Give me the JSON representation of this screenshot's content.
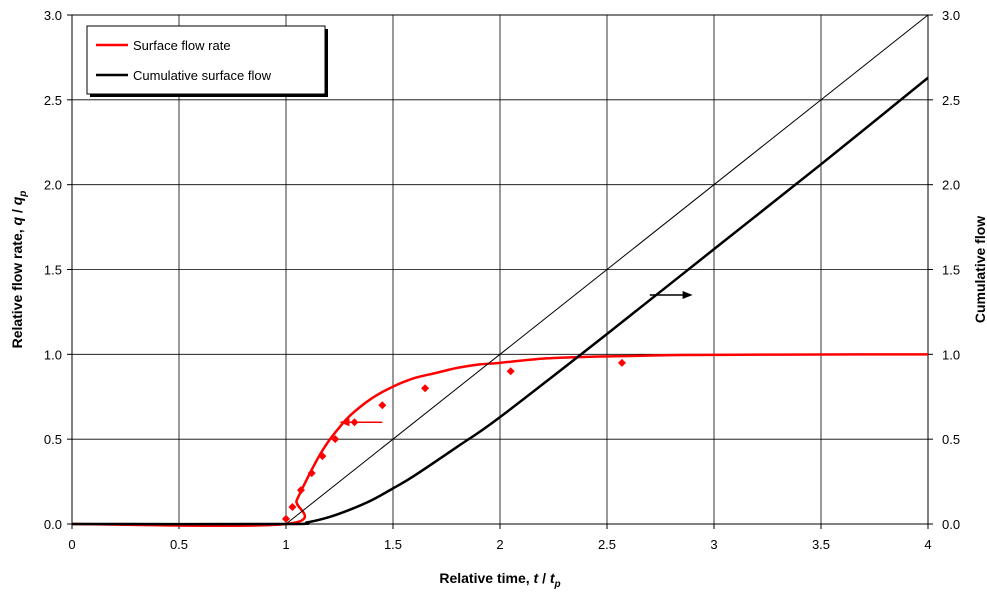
{
  "chart_data": {
    "type": "line",
    "title": "",
    "xlabel": {
      "text": "Relative time, ",
      "var": "t",
      "sep": " / ",
      "var2": "t",
      "sub": "p"
    },
    "ylabel_left": {
      "text": "Relative flow rate, ",
      "var": "q",
      "sep": " / ",
      "var2": "q",
      "sub": "p"
    },
    "ylabel_right": "Cumulative flow",
    "xlim": [
      0,
      4
    ],
    "ylim": [
      0,
      3
    ],
    "y2lim": [
      0,
      3
    ],
    "x_ticks": [
      "0",
      "0.5",
      "1",
      "1.5",
      "2",
      "2.5",
      "3",
      "3.5",
      "4"
    ],
    "y_ticks": [
      "0.0",
      "0.5",
      "1.0",
      "1.5",
      "2.0",
      "2.5",
      "3.0"
    ],
    "y2_ticks": [
      "0.0",
      "0.5",
      "1.0",
      "1.5",
      "2.0",
      "2.5",
      "3.0"
    ],
    "grid": true,
    "legend": {
      "position": "top-left",
      "entries": [
        {
          "name": "Surface flow rate",
          "color": "#ff0000"
        },
        {
          "name": "Cumulative surface flow",
          "color": "#000000"
        }
      ]
    },
    "series": [
      {
        "name": "Surface flow rate",
        "kind": "line",
        "axis": "left",
        "color": "#ff0000",
        "x": [
          0,
          1.0,
          1.05,
          1.1,
          1.15,
          1.2,
          1.25,
          1.3,
          1.4,
          1.5,
          1.6,
          1.7,
          1.8,
          1.9,
          2.0,
          2.2,
          2.4,
          2.6,
          2.8,
          3.0,
          3.5,
          4.0
        ],
        "y": [
          0,
          0,
          0.14,
          0.27,
          0.39,
          0.49,
          0.57,
          0.64,
          0.74,
          0.81,
          0.86,
          0.89,
          0.92,
          0.94,
          0.95,
          0.975,
          0.985,
          0.99,
          0.995,
          0.997,
          0.999,
          1.0
        ]
      },
      {
        "name": "Surface flow rate data",
        "kind": "points",
        "axis": "left",
        "color": "#ff0000",
        "x": [
          1.0,
          1.03,
          1.07,
          1.12,
          1.17,
          1.23,
          1.32,
          1.45,
          1.65,
          2.05,
          2.57
        ],
        "y": [
          0.03,
          0.1,
          0.2,
          0.3,
          0.4,
          0.5,
          0.6,
          0.7,
          0.8,
          0.9,
          0.95
        ]
      },
      {
        "name": "Cumulative surface flow",
        "kind": "line",
        "axis": "right",
        "color": "#000000",
        "x": [
          0,
          1.0,
          1.1,
          1.2,
          1.3,
          1.4,
          1.5,
          1.6,
          1.8,
          2.0,
          2.5,
          3.0,
          3.5,
          4.0
        ],
        "y": [
          0,
          0,
          0.01,
          0.04,
          0.085,
          0.14,
          0.21,
          0.285,
          0.455,
          0.63,
          1.12,
          1.62,
          2.12,
          2.63
        ]
      },
      {
        "name": "Reference line",
        "kind": "line",
        "axis": "right",
        "color": "#000000",
        "thin": true,
        "x": [
          1.0,
          4.0
        ],
        "y": [
          0,
          3.0
        ]
      }
    ],
    "annotations": [
      {
        "type": "arrow",
        "direction": "left",
        "color": "#ff0000",
        "x": 1.45,
        "y": 0.6,
        "length": 0.2
      },
      {
        "type": "arrow",
        "direction": "right",
        "color": "#000000",
        "x": 2.7,
        "y": 1.35,
        "length": 0.2
      }
    ]
  }
}
